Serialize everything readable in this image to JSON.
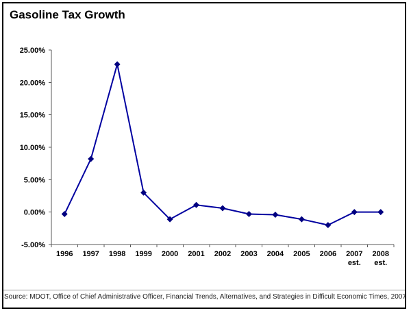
{
  "title": "Gasoline Tax Growth",
  "source": "Source: MDOT, Office of Chief Administrative Officer, Financial Trends, Alternatives, and Strategies in Difficult Economic Times, 2007",
  "colors": {
    "line": "#0000a0",
    "marker": "#000080",
    "axis": "#595959",
    "border": "#000000"
  },
  "chart_data": {
    "type": "line",
    "title": "Gasoline Tax Growth",
    "categories": [
      "1996",
      "1997",
      "1998",
      "1999",
      "2000",
      "2001",
      "2002",
      "2003",
      "2004",
      "2005",
      "2006",
      "2007 est.",
      "2008 est."
    ],
    "values": [
      -0.3,
      8.2,
      22.8,
      3.0,
      -1.1,
      1.1,
      0.6,
      -0.3,
      -0.4,
      -1.1,
      -2.0,
      0.0,
      0.0
    ],
    "xlabel": "",
    "ylabel": "",
    "ylim": [
      -5,
      25
    ],
    "ytick_step": 5,
    "ytick_labels": [
      "25.00%",
      "20.00%",
      "15.00%",
      "10.00%",
      "5.00%",
      "0.00%",
      "-5.00%"
    ],
    "grid": false,
    "legend": "none",
    "marker": "diamond"
  }
}
